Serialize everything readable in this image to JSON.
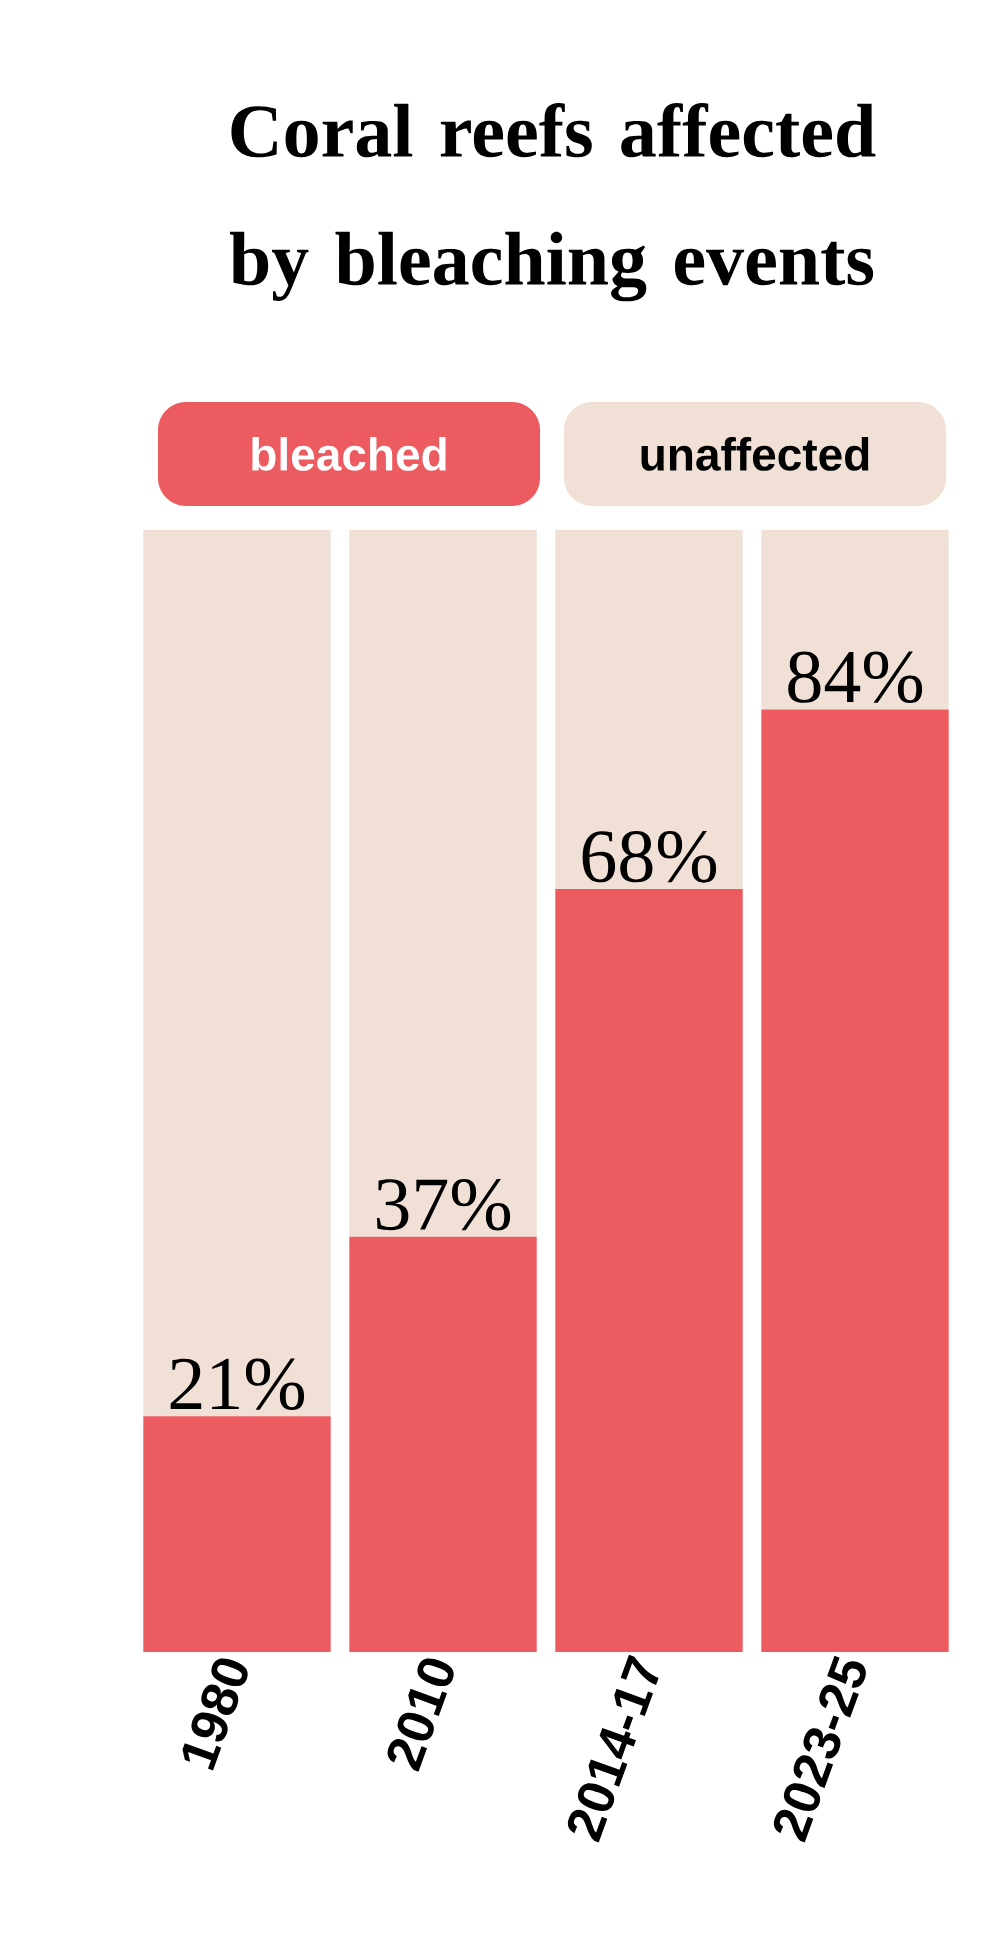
{
  "chart_data": {
    "type": "bar",
    "title": "Coral reefs affected by bleaching events",
    "categories": [
      "1980",
      "2010",
      "2014-17",
      "2023-25"
    ],
    "stacked": true,
    "legend": "top",
    "ylim": [
      0,
      100
    ],
    "series": [
      {
        "name": "bleached",
        "color": "#ec5b60",
        "values": [
          21,
          37,
          68,
          84
        ],
        "value_labels": [
          "21%",
          "37%",
          "68%",
          "84%"
        ]
      },
      {
        "name": "unaffected",
        "color": "#f0e0d6",
        "values": [
          79,
          63,
          32,
          16
        ]
      }
    ]
  }
}
